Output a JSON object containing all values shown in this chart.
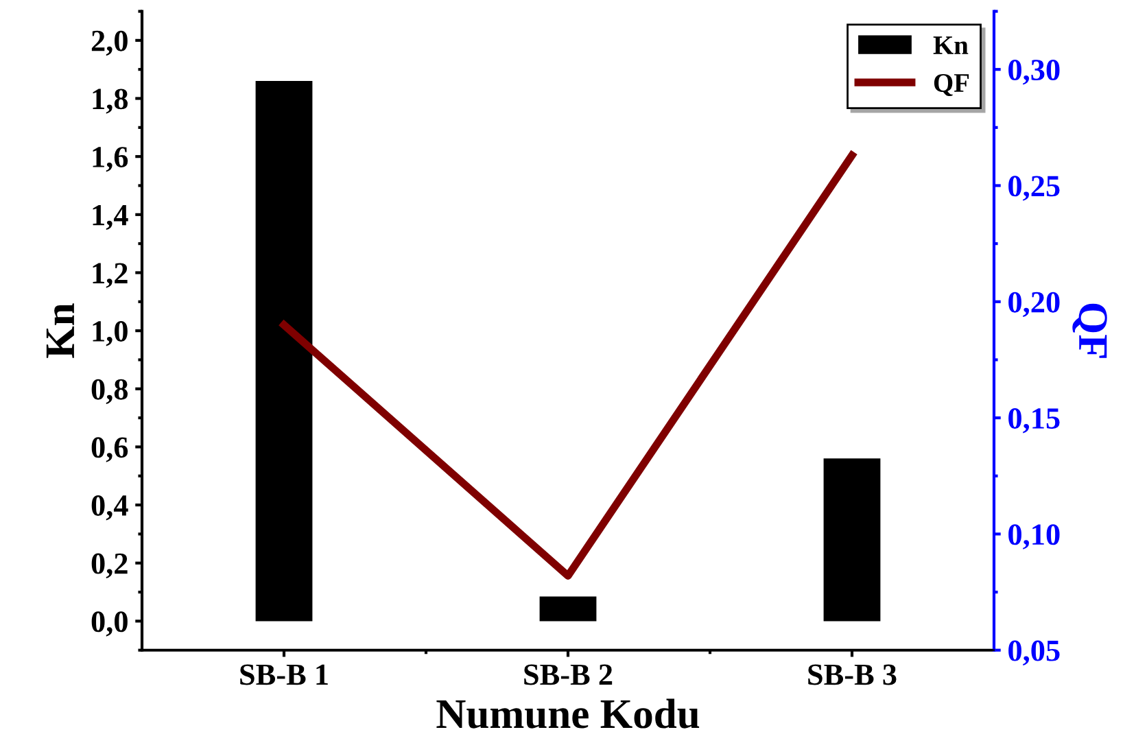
{
  "chart_data": {
    "type": "bar",
    "xlabel": "Numune Kodu",
    "ylabel": "Kn",
    "y2label": "QF",
    "categories": [
      "SB-B 1",
      "SB-B 2",
      "SB-B 3"
    ],
    "series": [
      {
        "name": "Kn",
        "color": "#000000",
        "values": [
          1.86,
          0.085,
          0.56
        ]
      },
      {
        "name": "QF",
        "type": "line",
        "axis": "y2",
        "color": "#7f0000",
        "values": [
          0.19,
          0.082,
          0.263
        ]
      }
    ],
    "ylim": [
      -0.1,
      2.1
    ],
    "yticks": [
      {
        "value": 0,
        "label": "0,0"
      },
      {
        "value": 0.2,
        "label": "0,2"
      },
      {
        "value": 0.4,
        "label": "0,4"
      },
      {
        "value": 0.6,
        "label": "0,6"
      },
      {
        "value": 0.8,
        "label": "0,8"
      },
      {
        "value": 1.0,
        "label": "1,0"
      },
      {
        "value": 1.2,
        "label": "1,2"
      },
      {
        "value": 1.4,
        "label": "1,4"
      },
      {
        "value": 1.6,
        "label": "1,6"
      },
      {
        "value": 1.8,
        "label": "1,8"
      },
      {
        "value": 2.0,
        "label": "2,0"
      }
    ],
    "y2lim": [
      0.05,
      0.325
    ],
    "y2ticks": [
      {
        "value": 0.05,
        "label": "0,05"
      },
      {
        "value": 0.1,
        "label": "0,10"
      },
      {
        "value": 0.15,
        "label": "0,15"
      },
      {
        "value": 0.2,
        "label": "0,20"
      },
      {
        "value": 0.25,
        "label": "0,25"
      },
      {
        "value": 0.3,
        "label": "0,30"
      }
    ],
    "grid": false,
    "legend": "top right"
  }
}
